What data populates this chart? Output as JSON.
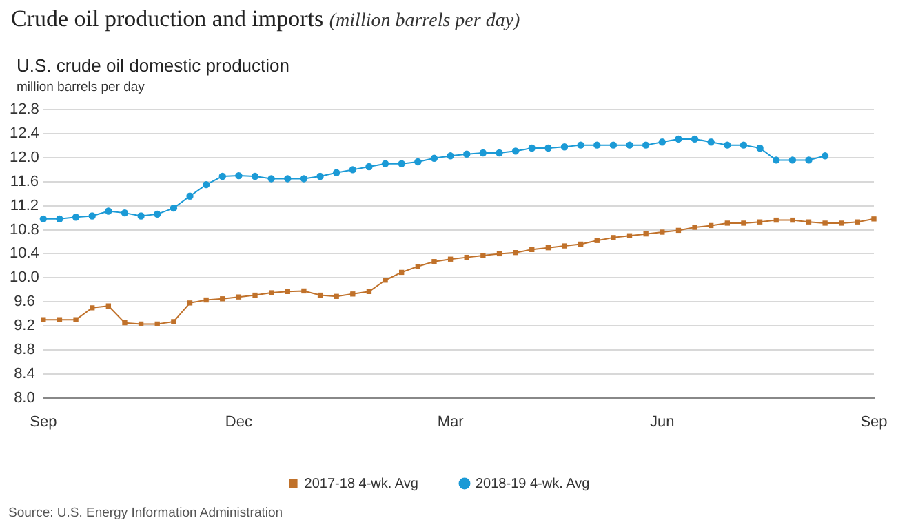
{
  "chart_data": {
    "type": "line",
    "title": "Crude oil production and imports",
    "subtitle": "(million barrels per day)",
    "ylabel": "million barrels per day",
    "annotations": [
      "U.S. crude oil domestic production",
      "Source: U.S. Energy Information Administration"
    ],
    "categories": [
      "Sep",
      null,
      null,
      null,
      null,
      null,
      null,
      null,
      null,
      null,
      null,
      null,
      "Dec",
      null,
      null,
      null,
      null,
      null,
      null,
      null,
      null,
      null,
      null,
      null,
      null,
      "Mar",
      null,
      null,
      null,
      null,
      null,
      null,
      null,
      null,
      null,
      null,
      null,
      null,
      "Jun",
      null,
      null,
      null,
      null,
      null,
      null,
      null,
      null,
      null,
      null,
      null,
      null,
      "Sep"
    ],
    "series": [
      {
        "name": "2017-18 4-wk. Avg",
        "color": "#c0712a",
        "marker": "square",
        "values": [
          9.3,
          9.3,
          9.3,
          9.5,
          9.53,
          9.25,
          9.23,
          9.23,
          9.27,
          9.58,
          9.63,
          9.65,
          9.68,
          9.71,
          9.75,
          9.77,
          9.78,
          9.71,
          9.69,
          9.73,
          9.77,
          9.96,
          10.09,
          10.19,
          10.27,
          10.31,
          10.34,
          10.37,
          10.4,
          10.42,
          10.47,
          10.5,
          10.53,
          10.56,
          10.62,
          10.67,
          10.7,
          10.73,
          10.76,
          10.79,
          10.84,
          10.87,
          10.91,
          10.91,
          10.93,
          10.96,
          10.96,
          10.93,
          10.91,
          10.91,
          10.93,
          10.98
        ]
      },
      {
        "name": "2018-19 4-wk. Avg",
        "color": "#1b9ad6",
        "marker": "circle",
        "values": [
          10.98,
          10.98,
          11.01,
          11.03,
          11.11,
          11.08,
          11.03,
          11.06,
          11.16,
          11.36,
          11.55,
          11.69,
          11.7,
          11.69,
          11.65,
          11.65,
          11.65,
          11.69,
          11.75,
          11.8,
          11.85,
          11.9,
          11.9,
          11.93,
          11.99,
          12.03,
          12.06,
          12.08,
          12.08,
          12.11,
          12.16,
          12.16,
          12.18,
          12.21,
          12.21,
          12.21,
          12.21,
          12.21,
          12.26,
          12.31,
          12.31,
          12.26,
          12.21,
          12.21,
          12.16,
          11.96,
          11.96,
          11.96,
          12.03,
          null,
          null,
          null
        ]
      }
    ],
    "ylim": [
      8,
      12.8
    ],
    "yticks": [
      {
        "value": 8,
        "label": "8.0"
      },
      {
        "value": 8.4,
        "label": "8.4"
      },
      {
        "value": 8.8,
        "label": "8.8"
      },
      {
        "value": 9.2,
        "label": "9.2"
      },
      {
        "value": 9.6,
        "label": "9.6"
      },
      {
        "value": 10,
        "label": "10.0"
      },
      {
        "value": 10.4,
        "label": "10.4"
      },
      {
        "value": 10.8,
        "label": "10.8"
      },
      {
        "value": 11.2,
        "label": "11.2"
      },
      {
        "value": 11.6,
        "label": "11.6"
      },
      {
        "value": 12,
        "label": "12.0"
      },
      {
        "value": 12.4,
        "label": "12.4"
      },
      {
        "value": 12.8,
        "label": "12.8"
      }
    ],
    "grid": "y",
    "legend": "bottom"
  }
}
